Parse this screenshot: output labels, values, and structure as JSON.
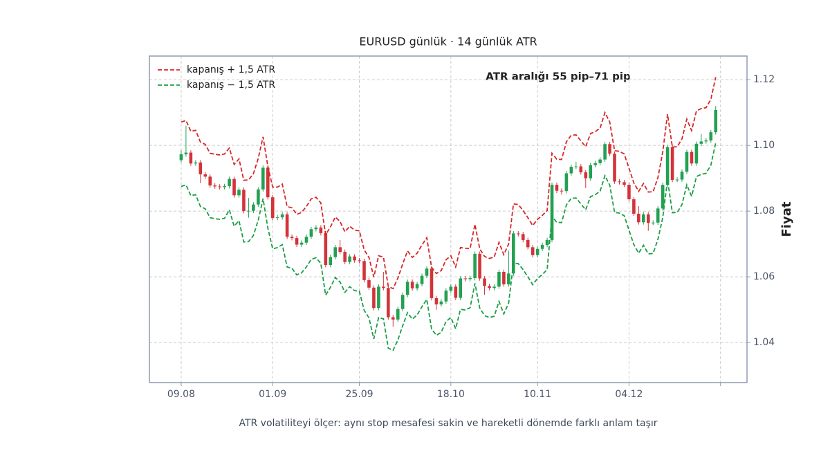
{
  "chart_data": {
    "type": "candlestick",
    "title": "EURUSD günlük · 14 günlük ATR",
    "annotation": "ATR aralığı 55 pip–71 pip",
    "caption": "ATR volatiliteyi ölçer: aynı stop mesafesi sakin ve hareketli dönemde farklı anlam taşır",
    "y_label": "Fiyat",
    "y_axis_side": "right",
    "legend": "upper left",
    "grid": true,
    "up_color": "#23a052",
    "down_color": "#d3333a",
    "categories": [
      "09.08",
      null,
      null,
      null,
      null,
      null,
      null,
      null,
      null,
      null,
      null,
      null,
      null,
      null,
      null,
      null,
      null,
      null,
      null,
      "01.09",
      null,
      null,
      null,
      null,
      null,
      null,
      null,
      null,
      null,
      null,
      null,
      null,
      null,
      null,
      null,
      null,
      null,
      "25.09",
      null,
      null,
      null,
      null,
      null,
      null,
      null,
      null,
      null,
      null,
      null,
      null,
      null,
      null,
      null,
      null,
      null,
      null,
      "18.10",
      null,
      null,
      null,
      null,
      null,
      null,
      null,
      null,
      null,
      null,
      null,
      null,
      null,
      null,
      null,
      null,
      null,
      "10.11",
      null,
      null,
      null,
      null,
      null,
      null,
      null,
      null,
      null,
      null,
      null,
      null,
      null,
      null,
      null,
      null,
      null,
      null,
      "04.12",
      null,
      null,
      null,
      null,
      null,
      null,
      null,
      null,
      null,
      null,
      null,
      null,
      null,
      null,
      null,
      null,
      null,
      null
    ],
    "open": [
      1.0955,
      1.0973,
      1.0978,
      1.0945,
      1.0948,
      1.0912,
      1.0905,
      1.0878,
      1.0875,
      1.0873,
      1.0876,
      1.0898,
      1.0848,
      1.0865,
      1.08,
      1.0801,
      1.082,
      1.0866,
      1.0932,
      1.0842,
      1.0779,
      1.0781,
      1.079,
      1.0722,
      1.0718,
      1.0698,
      1.0704,
      1.0722,
      1.0745,
      1.075,
      1.0733,
      1.0636,
      1.066,
      1.069,
      1.0676,
      1.0645,
      1.0662,
      1.065,
      1.0648,
      1.059,
      1.0567,
      1.0505,
      1.057,
      1.0566,
      1.0477,
      1.047,
      1.0502,
      1.0545,
      1.0585,
      1.0565,
      1.0578,
      1.0603,
      1.0625,
      1.0535,
      1.0516,
      1.0525,
      1.0558,
      1.057,
      1.0536,
      1.0595,
      1.0593,
      1.0596,
      1.067,
      1.0595,
      1.0572,
      1.0566,
      1.057,
      1.0615,
      1.0577,
      1.061,
      1.0732,
      1.073,
      1.0712,
      1.069,
      1.0666,
      1.0685,
      1.0697,
      1.0712,
      1.088,
      1.0862,
      1.0861,
      1.0915,
      1.0935,
      1.0936,
      1.0918,
      1.09,
      1.094,
      1.0946,
      1.0957,
      1.1004,
      1.0975,
      1.089,
      1.0888,
      1.088,
      1.0836,
      1.0792,
      1.0766,
      1.079,
      1.0764,
      1.0765,
      1.0808,
      1.088,
      1.0995,
      1.0895,
      1.0896,
      1.092,
      1.098,
      1.0945,
      1.1005,
      1.1012,
      1.1015,
      1.104
    ],
    "high": [
      1.0985,
      1.106,
      1.0985,
      1.0955,
      1.0955,
      1.0919,
      1.0912,
      1.0885,
      1.0882,
      1.0883,
      1.0905,
      1.0905,
      1.0872,
      1.0872,
      1.084,
      1.0827,
      1.0873,
      1.0939,
      1.0939,
      1.0849,
      1.0788,
      1.0797,
      1.0797,
      1.0729,
      1.0725,
      1.0711,
      1.0729,
      1.0752,
      1.0757,
      1.0757,
      1.074,
      1.0667,
      1.0697,
      1.0712,
      1.0683,
      1.0669,
      1.0669,
      1.0657,
      1.0655,
      1.0597,
      1.0574,
      1.0577,
      1.0615,
      1.0573,
      1.0484,
      1.0509,
      1.0552,
      1.0592,
      1.0592,
      1.0585,
      1.061,
      1.0632,
      1.0632,
      1.0542,
      1.0532,
      1.0565,
      1.0577,
      1.0577,
      1.0602,
      1.0602,
      1.0603,
      1.0677,
      1.0677,
      1.0602,
      1.0579,
      1.0577,
      1.0622,
      1.0622,
      1.068,
      1.0739,
      1.0739,
      1.0737,
      1.0719,
      1.0697,
      1.0692,
      1.0704,
      1.0719,
      1.0887,
      1.0887,
      1.0869,
      1.0922,
      1.0942,
      1.095,
      1.0943,
      1.0925,
      1.0947,
      1.0953,
      1.0964,
      1.1011,
      1.1011,
      1.0982,
      1.0897,
      1.0895,
      1.0887,
      1.0843,
      1.0815,
      1.0797,
      1.0797,
      1.0772,
      1.0815,
      1.0887,
      1.1002,
      1.1002,
      1.0903,
      1.0927,
      1.0987,
      1.0987,
      1.1012,
      1.1035,
      1.1022,
      1.1047,
      1.112
    ],
    "low": [
      1.0948,
      1.0966,
      1.0938,
      1.0938,
      1.0885,
      1.0898,
      1.0871,
      1.0868,
      1.0866,
      1.0866,
      1.0869,
      1.0841,
      1.0841,
      1.0793,
      1.078,
      1.0794,
      1.0813,
      1.0859,
      1.0835,
      1.0772,
      1.0772,
      1.0774,
      1.0715,
      1.0711,
      1.0691,
      1.0691,
      1.0697,
      1.0715,
      1.0738,
      1.0726,
      1.0629,
      1.0629,
      1.0653,
      1.0669,
      1.0638,
      1.0638,
      1.0643,
      1.0641,
      1.0583,
      1.056,
      1.0498,
      1.0498,
      1.0559,
      1.047,
      1.0448,
      1.0463,
      1.0495,
      1.0538,
      1.0558,
      1.0558,
      1.0571,
      1.0596,
      1.0528,
      1.05,
      1.0509,
      1.0518,
      1.0551,
      1.0529,
      1.0529,
      1.0586,
      1.0586,
      1.0589,
      1.0588,
      1.0545,
      1.0559,
      1.0559,
      1.0563,
      1.057,
      1.057,
      1.0603,
      1.0723,
      1.0705,
      1.0683,
      1.0659,
      1.0659,
      1.0678,
      1.069,
      1.0705,
      1.0855,
      1.085,
      1.0854,
      1.0908,
      1.0928,
      1.0911,
      1.087,
      1.0893,
      1.0933,
      1.0939,
      1.095,
      1.0968,
      1.0883,
      1.0881,
      1.0873,
      1.0829,
      1.0785,
      1.0759,
      1.0759,
      1.074,
      1.0757,
      1.0758,
      1.0801,
      1.0873,
      1.0888,
      1.0888,
      1.0889,
      1.0913,
      1.0938,
      1.0938,
      1.0998,
      1.1005,
      1.1008,
      1.1033
    ],
    "close": [
      1.0973,
      1.0978,
      1.0945,
      1.0948,
      1.0912,
      1.0905,
      1.0878,
      1.0875,
      1.0873,
      1.0876,
      1.0898,
      1.0848,
      1.0865,
      1.08,
      1.0801,
      1.082,
      1.0866,
      1.0932,
      1.0842,
      1.0779,
      1.0781,
      1.079,
      1.0722,
      1.0718,
      1.0698,
      1.0704,
      1.0722,
      1.0745,
      1.075,
      1.0733,
      1.0636,
      1.066,
      1.069,
      1.0676,
      1.0645,
      1.0662,
      1.065,
      1.0648,
      1.059,
      1.0567,
      1.0505,
      1.057,
      1.0566,
      1.0477,
      1.047,
      1.0502,
      1.0545,
      1.0585,
      1.0565,
      1.0578,
      1.0603,
      1.0625,
      1.0535,
      1.0516,
      1.0525,
      1.0558,
      1.057,
      1.0536,
      1.0595,
      1.0593,
      1.0596,
      1.067,
      1.0595,
      1.0572,
      1.0566,
      1.057,
      1.0615,
      1.0577,
      1.061,
      1.0732,
      1.073,
      1.0712,
      1.069,
      1.0666,
      1.0685,
      1.0697,
      1.0712,
      1.088,
      1.0862,
      1.0861,
      1.0915,
      1.0935,
      1.0936,
      1.0918,
      1.09,
      1.094,
      1.0946,
      1.0957,
      1.1004,
      1.0975,
      1.089,
      1.0888,
      1.088,
      1.0836,
      1.0792,
      1.0766,
      1.079,
      1.0764,
      1.0765,
      1.0808,
      1.088,
      1.0995,
      1.0895,
      1.0896,
      1.092,
      1.098,
      1.0945,
      1.1005,
      1.1012,
      1.1015,
      1.104,
      1.1108
    ],
    "series": [
      {
        "name": "kapanış + 1,5 ATR",
        "color": "#d62728",
        "values": [
          1.1071,
          1.1076,
          1.1043,
          1.1046,
          1.101,
          1.1003,
          1.0976,
          1.0973,
          1.0971,
          1.0974,
          1.0992,
          1.0942,
          1.0959,
          1.0894,
          1.0895,
          1.0914,
          1.096,
          1.1026,
          1.0936,
          1.0873,
          1.0873,
          1.0882,
          1.0814,
          1.081,
          1.079,
          1.0796,
          1.0814,
          1.0837,
          1.0842,
          1.0825,
          1.0728,
          1.0752,
          1.0782,
          1.0768,
          1.0737,
          1.0754,
          1.0742,
          1.074,
          1.0682,
          1.0659,
          1.0599,
          1.0664,
          1.066,
          1.0571,
          1.0564,
          1.0596,
          1.0639,
          1.0679,
          1.0659,
          1.0672,
          1.0697,
          1.0719,
          1.0629,
          1.061,
          1.0619,
          1.0652,
          1.0664,
          1.063,
          1.0689,
          1.0687,
          1.0686,
          1.076,
          1.0685,
          1.0662,
          1.0656,
          1.066,
          1.0705,
          1.0667,
          1.07,
          1.0822,
          1.082,
          1.0802,
          1.078,
          1.0756,
          1.0775,
          1.0787,
          1.0802,
          1.0976,
          1.0958,
          1.0957,
          1.1011,
          1.1031,
          1.1032,
          1.1014,
          1.0996,
          1.1036,
          1.1042,
          1.1053,
          1.11,
          1.1071,
          1.0984,
          1.0982,
          1.0974,
          1.093,
          1.0886,
          1.086,
          1.0884,
          1.0858,
          1.0859,
          1.0902,
          1.098,
          1.1095,
          1.0995,
          1.0996,
          1.102,
          1.108,
          1.1045,
          1.1105,
          1.1112,
          1.1115,
          1.114,
          1.1208
        ]
      },
      {
        "name": "kapanış − 1,5 ATR",
        "color": "#1a9e45",
        "values": [
          1.0875,
          1.088,
          1.0847,
          1.085,
          1.0814,
          1.0807,
          1.078,
          1.0777,
          1.0775,
          1.0778,
          1.0804,
          1.0754,
          1.0771,
          1.0706,
          1.0707,
          1.0726,
          1.0772,
          1.0838,
          1.0748,
          1.0685,
          1.0689,
          1.0698,
          1.063,
          1.0626,
          1.0606,
          1.0612,
          1.063,
          1.0653,
          1.0658,
          1.0641,
          1.0544,
          1.0568,
          1.0598,
          1.0584,
          1.0553,
          1.057,
          1.0558,
          1.0556,
          1.0498,
          1.0475,
          1.0411,
          1.0476,
          1.0472,
          1.0383,
          1.0376,
          1.0408,
          1.0451,
          1.0491,
          1.0471,
          1.0484,
          1.0509,
          1.0531,
          1.0441,
          1.0422,
          1.0431,
          1.0464,
          1.0476,
          1.0442,
          1.0501,
          1.0499,
          1.0506,
          1.058,
          1.0505,
          1.0482,
          1.0476,
          1.048,
          1.0525,
          1.0487,
          1.052,
          1.0642,
          1.064,
          1.0622,
          1.06,
          1.0576,
          1.0595,
          1.0607,
          1.0622,
          1.0784,
          1.0766,
          1.0765,
          1.0819,
          1.0839,
          1.084,
          1.0822,
          1.0804,
          1.0844,
          1.085,
          1.0861,
          1.0908,
          1.0879,
          1.0796,
          1.0794,
          1.0786,
          1.0742,
          1.0698,
          1.0672,
          1.0696,
          1.067,
          1.0671,
          1.0714,
          1.078,
          1.0895,
          1.0795,
          1.0796,
          1.082,
          1.088,
          1.0845,
          1.0905,
          1.0912,
          1.0915,
          1.094,
          1.1008
        ]
      }
    ],
    "xlim": [
      -6.6,
      117.5
    ],
    "xticks": [
      0,
      19,
      37,
      56,
      74,
      93,
      112
    ],
    "ylim": [
      1.0278,
      1.1272
    ],
    "yticks": [
      1.04,
      1.06,
      1.08,
      {
        "value": 1.1,
        "label": "1.10"
      },
      1.12
    ]
  }
}
